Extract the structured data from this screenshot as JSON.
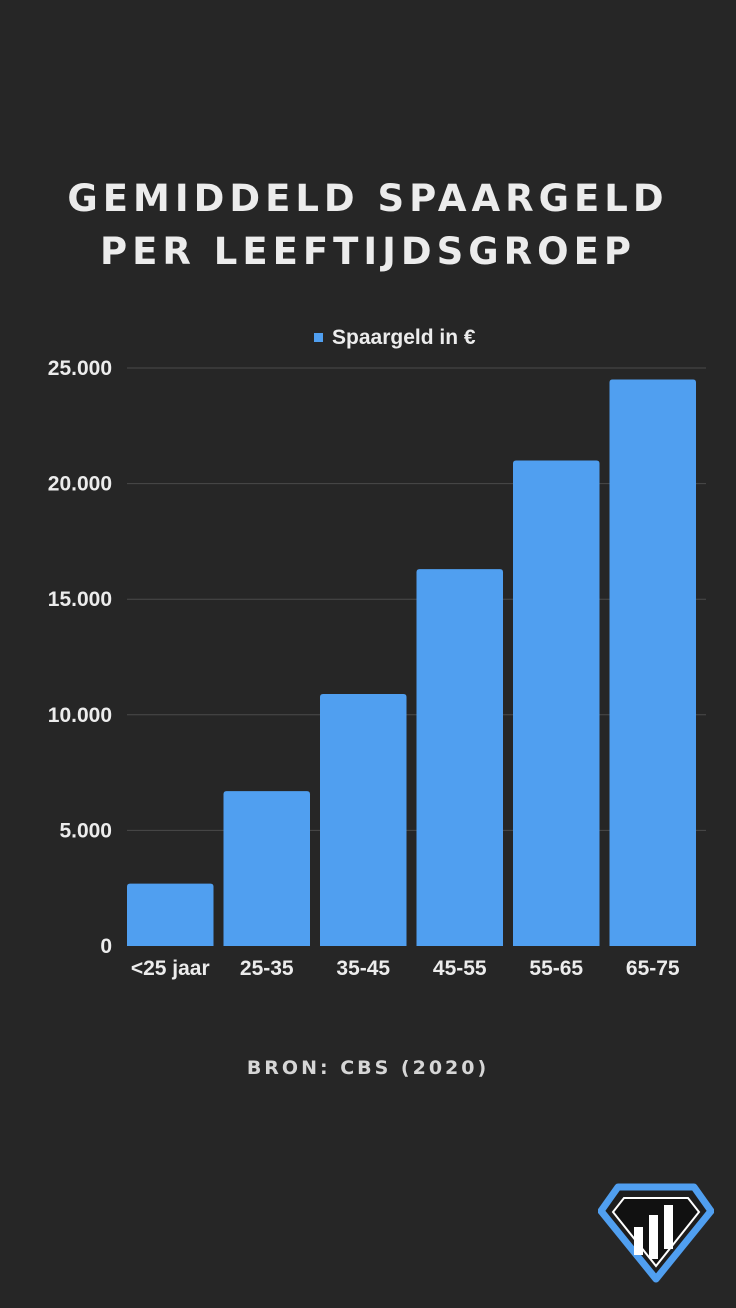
{
  "header": {
    "title_line1": "GEMIDDELD SPAARGELD",
    "title_line2": "PER LEEFTIJDSGROEP"
  },
  "footer": {
    "source": "BRON: CBS (2020)"
  },
  "colors": {
    "background": "#262626",
    "bar": "#509ff0",
    "text": "#ececec",
    "grid": "#4a4a4a",
    "logo_border": "#509ff0"
  },
  "logo": {
    "icon": "diamond-bar-chart-icon"
  },
  "chart_data": {
    "type": "bar",
    "title": "",
    "legend_position": "top-center",
    "grid": true,
    "ylim": [
      0,
      25000
    ],
    "yticks": [
      {
        "value": 0,
        "label": "0"
      },
      {
        "value": 5000,
        "label": "5.000"
      },
      {
        "value": 10000,
        "label": "10.000"
      },
      {
        "value": 15000,
        "label": "15.000"
      },
      {
        "value": 20000,
        "label": "20.000"
      },
      {
        "value": 25000,
        "label": "25.000"
      }
    ],
    "categories": [
      "<25 jaar",
      "25-35",
      "35-45",
      "45-55",
      "55-65",
      "65-75"
    ],
    "series": [
      {
        "name": "Spaargeld in €",
        "values": [
          2700,
          6700,
          10900,
          16300,
          21000,
          24500
        ]
      }
    ]
  }
}
